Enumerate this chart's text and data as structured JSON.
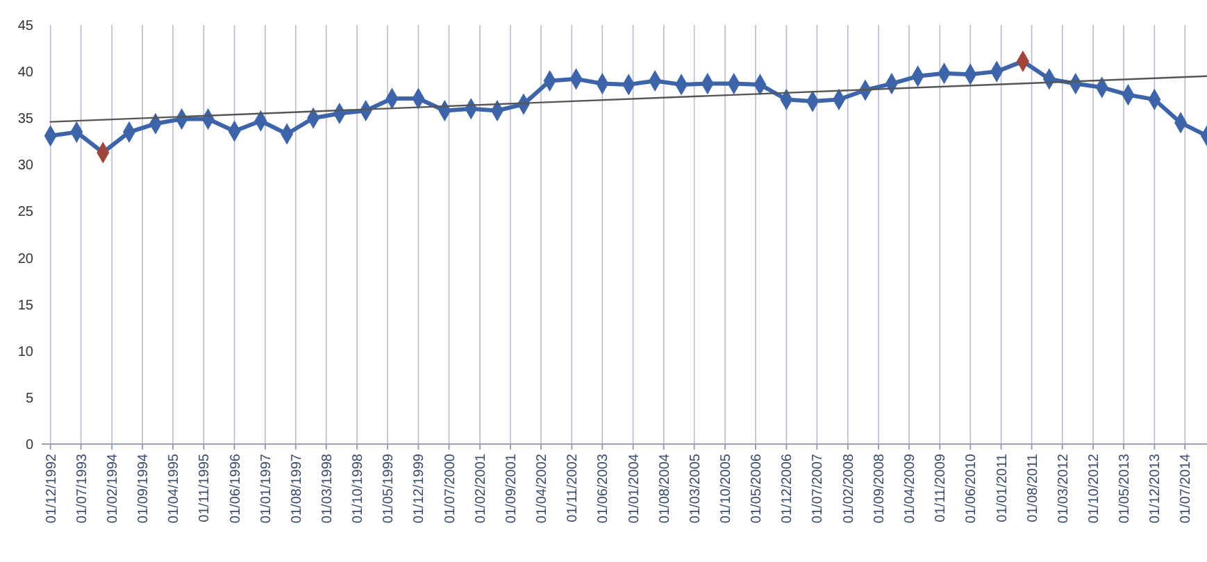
{
  "chart_data": {
    "type": "line",
    "x": [
      "1992-12",
      "1993-06",
      "1993-12",
      "1994-06",
      "1994-12",
      "1995-06",
      "1995-12",
      "1996-06",
      "1996-12",
      "1997-06",
      "1997-12",
      "1998-06",
      "1998-12",
      "1999-06",
      "1999-12",
      "2000-06",
      "2000-12",
      "2001-06",
      "2001-12",
      "2002-06",
      "2002-12",
      "2003-06",
      "2003-12",
      "2004-06",
      "2004-12",
      "2005-06",
      "2005-12",
      "2006-06",
      "2006-12",
      "2007-06",
      "2007-12",
      "2008-06",
      "2008-12",
      "2009-06",
      "2009-12",
      "2010-06",
      "2010-12",
      "2011-06",
      "2011-12",
      "2012-06",
      "2012-12",
      "2013-06",
      "2013-12",
      "2014-06",
      "2014-12"
    ],
    "series": [
      {
        "color": "#3d64a8",
        "marker": "diamond",
        "colors": [
          "#3d64a8",
          "#3d64a8",
          "#a0453c",
          "#3d64a8",
          "#3d64a8",
          "#3d64a8",
          "#3d64a8",
          "#3d64a8",
          "#3d64a8",
          "#3d64a8",
          "#3d64a8",
          "#3d64a8",
          "#3d64a8",
          "#3d64a8",
          "#3d64a8",
          "#3d64a8",
          "#3d64a8",
          "#3d64a8",
          "#3d64a8",
          "#3d64a8",
          "#3d64a8",
          "#3d64a8",
          "#3d64a8",
          "#3d64a8",
          "#3d64a8",
          "#3d64a8",
          "#3d64a8",
          "#3d64a8",
          "#3d64a8",
          "#3d64a8",
          "#3d64a8",
          "#3d64a8",
          "#3d64a8",
          "#3d64a8",
          "#3d64a8",
          "#3d64a8",
          "#3d64a8",
          "#a0453c",
          "#3d64a8",
          "#3d64a8",
          "#3d64a8",
          "#3d64a8",
          "#3d64a8",
          "#3d64a8",
          "#3d64a8"
        ],
        "values": [
          33.1,
          33.5,
          31.3,
          33.5,
          34.4,
          34.9,
          34.9,
          33.6,
          34.7,
          33.3,
          35.0,
          35.5,
          35.8,
          37.1,
          37.1,
          35.8,
          36.0,
          35.8,
          36.5,
          39.0,
          39.2,
          38.7,
          38.6,
          39.0,
          38.6,
          38.7,
          38.7,
          38.6,
          37.0,
          36.8,
          37.0,
          38.0,
          38.7,
          39.5,
          39.8,
          39.7,
          40.0,
          41.1,
          39.2,
          38.7,
          38.3,
          37.5,
          37.0,
          34.5,
          33.1
        ]
      },
      {
        "type": "line",
        "color": "#555555",
        "marker": "none",
        "x": [
          "1992-12",
          "2014-12"
        ],
        "values": [
          34.6,
          39.5
        ]
      }
    ],
    "xlim": [
      "1992-10",
      "2014-12"
    ],
    "xticks": [
      {
        "value": "1992-12",
        "label": "01/12/1992"
      },
      {
        "value": "1993-07",
        "label": "01/07/1993"
      },
      {
        "value": "1994-02",
        "label": "01/02/1994"
      },
      {
        "value": "1994-09",
        "label": "01/09/1994"
      },
      {
        "value": "1995-04",
        "label": "01/04/1995"
      },
      {
        "value": "1995-11",
        "label": "01/11/1995"
      },
      {
        "value": "1996-06",
        "label": "01/06/1996"
      },
      {
        "value": "1997-01",
        "label": "01/01/1997"
      },
      {
        "value": "1997-08",
        "label": "01/08/1997"
      },
      {
        "value": "1998-03",
        "label": "01/03/1998"
      },
      {
        "value": "1998-10",
        "label": "01/10/1998"
      },
      {
        "value": "1999-05",
        "label": "01/05/1999"
      },
      {
        "value": "1999-12",
        "label": "01/12/1999"
      },
      {
        "value": "2000-07",
        "label": "01/07/2000"
      },
      {
        "value": "2001-02",
        "label": "01/02/2001"
      },
      {
        "value": "2001-09",
        "label": "01/09/2001"
      },
      {
        "value": "2002-04",
        "label": "01/04/2002"
      },
      {
        "value": "2002-11",
        "label": "01/11/2002"
      },
      {
        "value": "2003-06",
        "label": "01/06/2003"
      },
      {
        "value": "2004-01",
        "label": "01/01/2004"
      },
      {
        "value": "2004-08",
        "label": "01/08/2004"
      },
      {
        "value": "2005-03",
        "label": "01/03/2005"
      },
      {
        "value": "2005-10",
        "label": "01/10/2005"
      },
      {
        "value": "2006-05",
        "label": "01/05/2006"
      },
      {
        "value": "2006-12",
        "label": "01/12/2006"
      },
      {
        "value": "2007-07",
        "label": "01/07/2007"
      },
      {
        "value": "2008-02",
        "label": "01/02/2008"
      },
      {
        "value": "2008-09",
        "label": "01/09/2008"
      },
      {
        "value": "2009-04",
        "label": "01/04/2009"
      },
      {
        "value": "2009-11",
        "label": "01/11/2009"
      },
      {
        "value": "2010-06",
        "label": "01/06/2010"
      },
      {
        "value": "2011-01",
        "label": "01/01/2011"
      },
      {
        "value": "2011-08",
        "label": "01/08/2011"
      },
      {
        "value": "2012-03",
        "label": "01/03/2012"
      },
      {
        "value": "2012-10",
        "label": "01/10/2012"
      },
      {
        "value": "2013-05",
        "label": "01/05/2013"
      },
      {
        "value": "2013-12",
        "label": "01/12/2013"
      },
      {
        "value": "2014-07",
        "label": "01/07/2014"
      }
    ],
    "ylim": [
      0,
      45
    ],
    "yticks": [
      0,
      5,
      10,
      15,
      20,
      25,
      30,
      35,
      40,
      45
    ],
    "grid": "x"
  }
}
